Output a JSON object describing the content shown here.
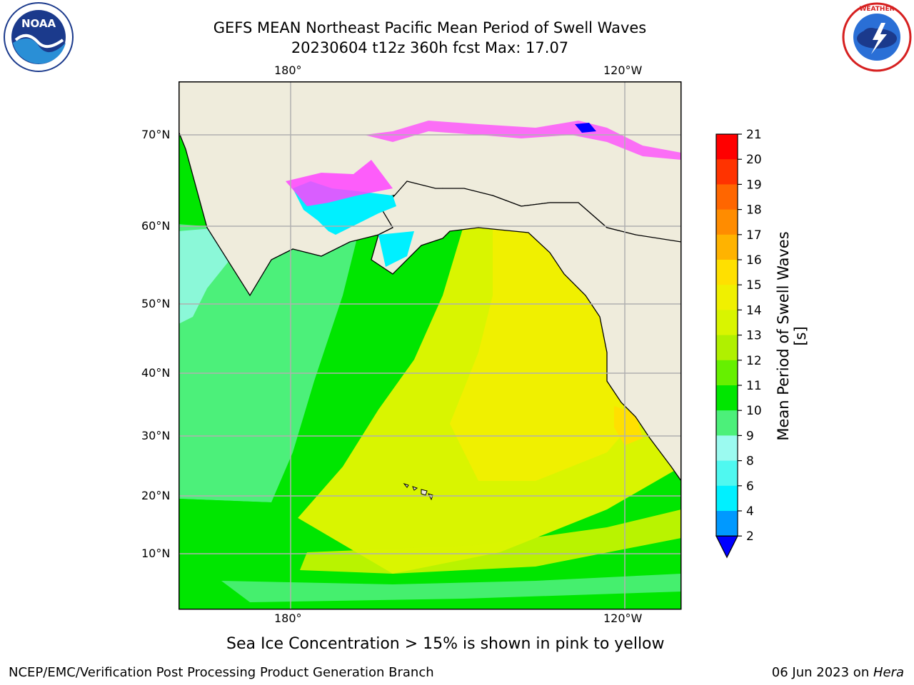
{
  "header": {
    "title_line1": "GEFS MEAN Northeast Pacific Mean Period of Swell Waves",
    "title_line2": "20230604 t12z 360h fcst   Max: 17.07"
  },
  "logos": {
    "left": {
      "name": "noaa-logo",
      "text": "NOAA",
      "ring_text": "NATIONAL OCEANIC AND ATMOSPHERIC ADMINISTRATION · U.S. DEPARTMENT OF COMMERCE"
    },
    "right": {
      "name": "nws-logo",
      "ring_text": "NATIONAL WEATHER SERVICE"
    }
  },
  "map": {
    "lon_labels": [
      "180°",
      "120°W"
    ],
    "lat_labels": [
      "70°N",
      "60°N",
      "50°N",
      "40°N",
      "30°N",
      "20°N",
      "10°N"
    ],
    "colors": {
      "land": "#efecdc",
      "grid": "#b0b0b0",
      "coast": "#000000"
    }
  },
  "colorbar": {
    "label": "Mean Period of Swell Waves [s]",
    "ticks": [
      "21",
      "20",
      "19",
      "18",
      "17",
      "16",
      "15",
      "14",
      "13",
      "12",
      "11",
      "10",
      "9",
      "8",
      "6",
      "4",
      "2"
    ],
    "colors": [
      "#ff0000",
      "#ff3300",
      "#ff6600",
      "#ff8c00",
      "#ffb300",
      "#ffe000",
      "#f0f000",
      "#d9f500",
      "#b0f000",
      "#66f000",
      "#00e600",
      "#4cf07a",
      "#9bfaf0",
      "#4ff8f0",
      "#00f0ff",
      "#0099ff",
      "#0000ff"
    ]
  },
  "note": "Sea Ice Concentration > 15% is shown in pink to yellow",
  "footer": {
    "left": "NCEP/EMC/Verification Post Processing Product Generation Branch",
    "right_prefix": "06 Jun 2023 on ",
    "right_italic": "Hera"
  }
}
